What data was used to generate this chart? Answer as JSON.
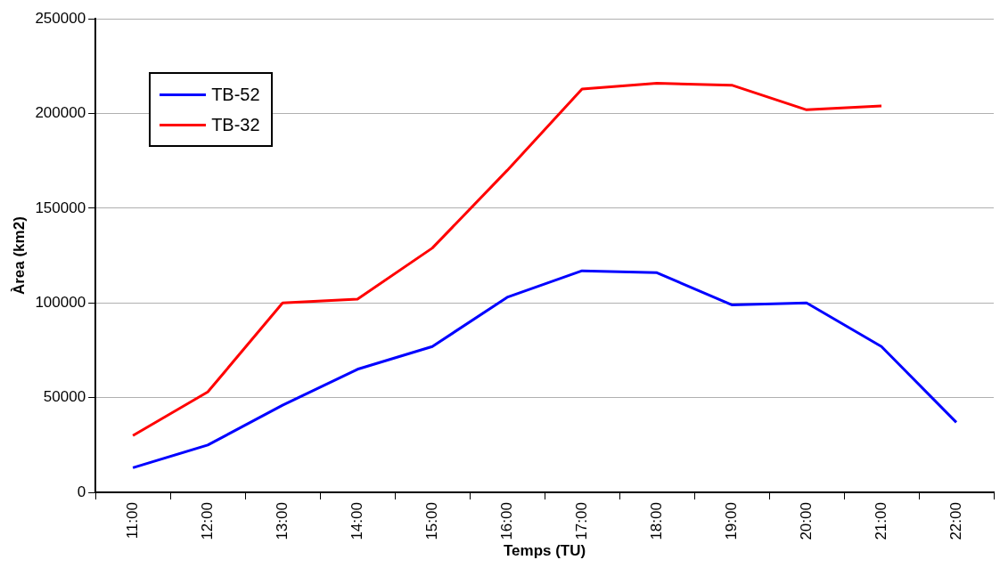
{
  "chart_data": {
    "type": "line",
    "xlabel": "Temps (TU)",
    "ylabel": "Àrea (km2)",
    "categories": [
      "11:00",
      "12:00",
      "13:00",
      "14:00",
      "15:00",
      "16:00",
      "17:00",
      "18:00",
      "19:00",
      "20:00",
      "21:00",
      "22:00"
    ],
    "series": [
      {
        "name": "TB-52",
        "color": "#0000ff",
        "values": [
          13000,
          25000,
          46000,
          65000,
          77000,
          103000,
          117000,
          116000,
          99000,
          100000,
          77000,
          37000
        ]
      },
      {
        "name": "TB-32",
        "color": "#ff0000",
        "values": [
          30000,
          53000,
          100000,
          102000,
          129000,
          170000,
          213000,
          216000,
          215000,
          202000,
          204000,
          null
        ]
      }
    ],
    "ylim": [
      0,
      250000
    ],
    "yticks": [
      0,
      50000,
      100000,
      150000,
      200000,
      250000
    ],
    "grid": "y",
    "legend": "top left",
    "marker": "none",
    "line_style": "solid"
  }
}
